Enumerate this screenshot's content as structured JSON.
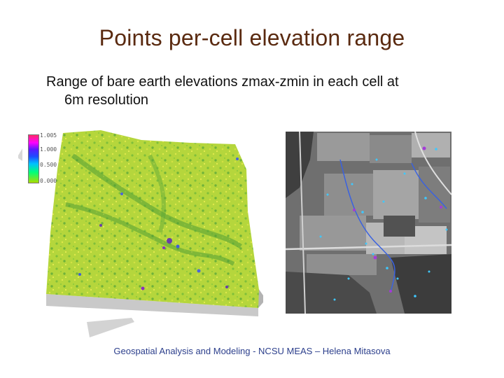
{
  "slide": {
    "title": "Points per-cell elevation range",
    "body_line1": "Range of bare earth elevations zmax-zmin in each cell at",
    "body_line2": "6m resolution",
    "footer": "Geospatial Analysis and Modeling - NCSU MEAS – Helena Mitasova"
  },
  "legend": {
    "labels": [
      "1.005",
      "1.000",
      "0.500",
      "0.000"
    ],
    "colors": [
      "#ff2a6a",
      "#ff00ff",
      "#5a1aff",
      "#1e4bff",
      "#00c0ff",
      "#00ff7a",
      "#aadd00"
    ]
  },
  "colors": {
    "title": "#5a2a10",
    "footer": "#2c3f8c",
    "terrain_base": "#a9cf3a",
    "terrain_side": "#c8c8c8"
  }
}
